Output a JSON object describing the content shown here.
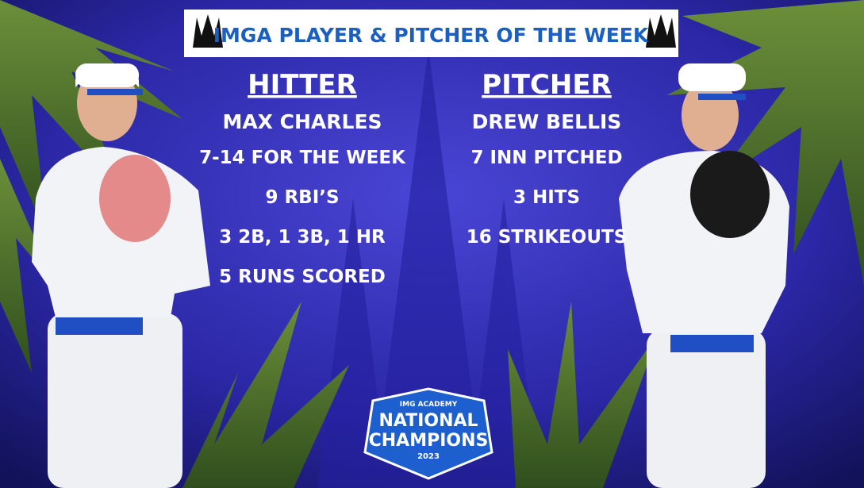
{
  "header": {
    "title": "IMGA PLAYER & PITCHER OF THE WEEK"
  },
  "hitter": {
    "heading": "HITTER",
    "name": "MAX CHARLES",
    "stats": [
      "7-14 FOR THE WEEK",
      "9 RBI’S",
      "3 2B, 1 3B, 1 HR",
      "5 RUNS SCORED"
    ]
  },
  "pitcher": {
    "heading": "PITCHER",
    "name": "DREW BELLIS",
    "stats": [
      "7 INN PITCHED",
      "3 HITS",
      "16 STRIKEOUTS"
    ]
  },
  "logo": {
    "academy": "IMG ACADEMY",
    "line1": "NATIONAL",
    "line2": "CHAMPIONS",
    "year": "2023"
  }
}
